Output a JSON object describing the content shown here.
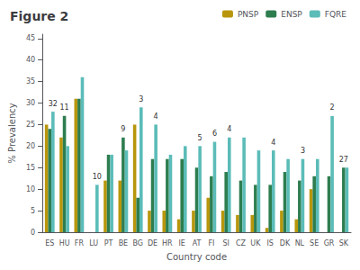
{
  "chart_data": {
    "type": "bar",
    "title": "Figure 2",
    "xlabel": "Country code",
    "ylabel": "% Prevalency",
    "categories": [
      "ES",
      "HU",
      "FR",
      "LU",
      "PT",
      "BE",
      "BG",
      "DE",
      "HR",
      "IE",
      "AT",
      "FI",
      "SI",
      "CZ",
      "UK",
      "IS",
      "DK",
      "NL",
      "SE",
      "GR",
      "SK"
    ],
    "series": [
      {
        "name": "PNSP",
        "color": "#b8960c",
        "values": [
          25,
          22,
          31,
          0,
          12,
          12,
          25,
          5,
          5,
          3,
          5,
          8,
          5,
          4,
          4,
          1,
          5,
          3,
          10,
          0,
          0
        ]
      },
      {
        "name": "ENSP",
        "color": "#2e7d4f",
        "values": [
          24,
          27,
          31,
          0,
          18,
          22,
          8,
          17,
          17,
          17,
          15,
          13,
          14,
          12,
          11,
          11,
          14,
          12,
          13,
          13,
          15
        ]
      },
      {
        "name": "FQRE",
        "color": "#5bbcb8",
        "values": [
          28,
          20,
          36,
          11,
          18,
          19,
          29,
          25,
          18,
          20,
          20,
          21,
          22,
          22,
          19,
          19,
          17,
          17,
          17,
          27,
          15
        ]
      }
    ],
    "annotations": [
      "32",
      "11",
      null,
      "10",
      null,
      "9",
      "3",
      "4",
      null,
      null,
      "5",
      "6",
      "4",
      null,
      null,
      "4",
      null,
      "3",
      null,
      "2",
      "27"
    ],
    "ylim": [
      0,
      46
    ],
    "yticks": [
      0,
      5,
      10,
      15,
      20,
      25,
      30,
      35,
      40,
      45
    ],
    "grid": false,
    "legend": "upper right"
  }
}
